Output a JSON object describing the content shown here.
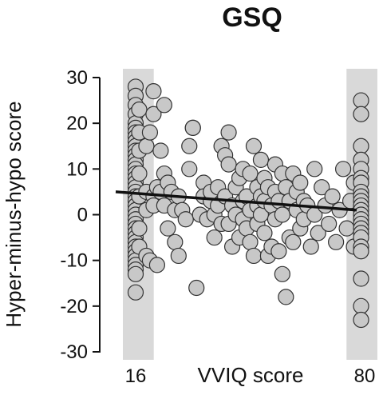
{
  "chart_data": {
    "type": "scatter",
    "title": "GSQ",
    "xlabel": "VVIQ score",
    "ylabel": "Hyper-minus-hypo score",
    "xlim": [
      16,
      80
    ],
    "ylim": [
      -30,
      30
    ],
    "x_tick_labels": [
      "16",
      "80"
    ],
    "y_ticks": [
      30,
      20,
      10,
      0,
      -10,
      -20,
      -30
    ],
    "y_tick_labels": [
      "30",
      "20",
      "10",
      "0",
      "-10",
      "-20",
      "-30"
    ],
    "grid": false,
    "highlight_bands": [
      {
        "x_from": 16,
        "x_to": 17.5,
        "color": "#d9d9d9"
      },
      {
        "x_from": 78.5,
        "x_to": 80,
        "color": "#d9d9d9"
      }
    ],
    "trend_line": {
      "x": [
        16,
        80
      ],
      "y": [
        5.0,
        1.0
      ],
      "color": "#111111"
    },
    "marker_color": "#c8c8c8",
    "marker_edge": "#333333",
    "points": [
      [
        16,
        28
      ],
      [
        16,
        26
      ],
      [
        16,
        24
      ],
      [
        16,
        22
      ],
      [
        16,
        20
      ],
      [
        16,
        19
      ],
      [
        16,
        18
      ],
      [
        16,
        17
      ],
      [
        16,
        16
      ],
      [
        16,
        15
      ],
      [
        16,
        14
      ],
      [
        16,
        13
      ],
      [
        16,
        12
      ],
      [
        16,
        11
      ],
      [
        16,
        10
      ],
      [
        16,
        9
      ],
      [
        16,
        8
      ],
      [
        16,
        7
      ],
      [
        16,
        6
      ],
      [
        16,
        5
      ],
      [
        16,
        4
      ],
      [
        16,
        3
      ],
      [
        16,
        2
      ],
      [
        16,
        1
      ],
      [
        16,
        0
      ],
      [
        16,
        -1
      ],
      [
        16,
        -2
      ],
      [
        16,
        -3
      ],
      [
        16,
        -4
      ],
      [
        16,
        -5
      ],
      [
        16,
        -6
      ],
      [
        16,
        -7
      ],
      [
        16,
        -8
      ],
      [
        16,
        -9
      ],
      [
        16,
        -10
      ],
      [
        16,
        -11
      ],
      [
        16,
        -12
      ],
      [
        16,
        -13
      ],
      [
        16,
        -17
      ],
      [
        17,
        23
      ],
      [
        17,
        18
      ],
      [
        17,
        14
      ],
      [
        17,
        9
      ],
      [
        17,
        4
      ],
      [
        17,
        -3
      ],
      [
        17,
        -7
      ],
      [
        19,
        15
      ],
      [
        19,
        5
      ],
      [
        19,
        1
      ],
      [
        19,
        -9
      ],
      [
        20,
        18
      ],
      [
        20,
        -10
      ],
      [
        21,
        27
      ],
      [
        21,
        22
      ],
      [
        21,
        4
      ],
      [
        21,
        2
      ],
      [
        22,
        -11
      ],
      [
        22,
        6
      ],
      [
        23,
        14
      ],
      [
        23,
        5
      ],
      [
        24,
        24
      ],
      [
        24,
        9
      ],
      [
        24,
        2
      ],
      [
        25,
        7
      ],
      [
        25,
        -3
      ],
      [
        26,
        5
      ],
      [
        27,
        1
      ],
      [
        27,
        -6
      ],
      [
        28,
        -9
      ],
      [
        28,
        4
      ],
      [
        29,
        1
      ],
      [
        30,
        -1
      ],
      [
        31,
        15
      ],
      [
        31,
        10
      ],
      [
        32,
        19
      ],
      [
        32,
        19
      ],
      [
        33,
        -16
      ],
      [
        34,
        0
      ],
      [
        35,
        7
      ],
      [
        35,
        4
      ],
      [
        36,
        -1
      ],
      [
        37,
        3
      ],
      [
        37,
        5
      ],
      [
        38,
        0
      ],
      [
        38,
        -5
      ],
      [
        39,
        2
      ],
      [
        39,
        6
      ],
      [
        40,
        15
      ],
      [
        40,
        -2
      ],
      [
        41,
        13
      ],
      [
        41,
        4
      ],
      [
        42,
        18
      ],
      [
        42,
        11
      ],
      [
        42,
        -2
      ],
      [
        43,
        -7
      ],
      [
        43,
        2
      ],
      [
        44,
        6
      ],
      [
        44,
        0
      ],
      [
        45,
        -5
      ],
      [
        45,
        8
      ],
      [
        46,
        10
      ],
      [
        46,
        3
      ],
      [
        46,
        -1
      ],
      [
        47,
        4
      ],
      [
        47,
        -3
      ],
      [
        48,
        9
      ],
      [
        48,
        1
      ],
      [
        48,
        -6
      ],
      [
        49,
        15
      ],
      [
        49,
        -9
      ],
      [
        50,
        6
      ],
      [
        50,
        2
      ],
      [
        50,
        -2
      ],
      [
        51,
        12
      ],
      [
        51,
        4
      ],
      [
        51,
        0
      ],
      [
        52,
        8
      ],
      [
        52,
        -4
      ],
      [
        52,
        3
      ],
      [
        53,
        -9
      ],
      [
        53,
        6
      ],
      [
        54,
        2
      ],
      [
        54,
        -7
      ],
      [
        55,
        11
      ],
      [
        55,
        5
      ],
      [
        55,
        -1
      ],
      [
        56,
        3
      ],
      [
        56,
        -8
      ],
      [
        57,
        9
      ],
      [
        57,
        0
      ],
      [
        57,
        -13
      ],
      [
        58,
        -18
      ],
      [
        58,
        6
      ],
      [
        59,
        3
      ],
      [
        59,
        -5
      ],
      [
        60,
        9
      ],
      [
        60,
        -6
      ],
      [
        61,
        1
      ],
      [
        61,
        5
      ],
      [
        62,
        7
      ],
      [
        62,
        -3
      ],
      [
        63,
        -1
      ],
      [
        63,
        3
      ],
      [
        64,
        2
      ],
      [
        65,
        -7
      ],
      [
        66,
        10
      ],
      [
        66,
        0
      ],
      [
        67,
        -4
      ],
      [
        68,
        6
      ],
      [
        69,
        2
      ],
      [
        70,
        -2
      ],
      [
        71,
        4
      ],
      [
        72,
        -6
      ],
      [
        73,
        1
      ],
      [
        74,
        10
      ],
      [
        75,
        -3
      ],
      [
        76,
        3
      ],
      [
        77,
        -7
      ],
      [
        77,
        7
      ],
      [
        79,
        25
      ],
      [
        79,
        22
      ],
      [
        79,
        15
      ],
      [
        79,
        12
      ],
      [
        79,
        10
      ],
      [
        79,
        8
      ],
      [
        79,
        7
      ],
      [
        79,
        5
      ],
      [
        79,
        4
      ],
      [
        79,
        3
      ],
      [
        79,
        2
      ],
      [
        79,
        1
      ],
      [
        79,
        0
      ],
      [
        79,
        -1
      ],
      [
        79,
        -2
      ],
      [
        79,
        -3
      ],
      [
        79,
        -4
      ],
      [
        79,
        -5
      ],
      [
        79,
        -7
      ],
      [
        79,
        -8
      ],
      [
        79,
        -14
      ],
      [
        79,
        -20
      ],
      [
        79,
        -23
      ]
    ]
  }
}
